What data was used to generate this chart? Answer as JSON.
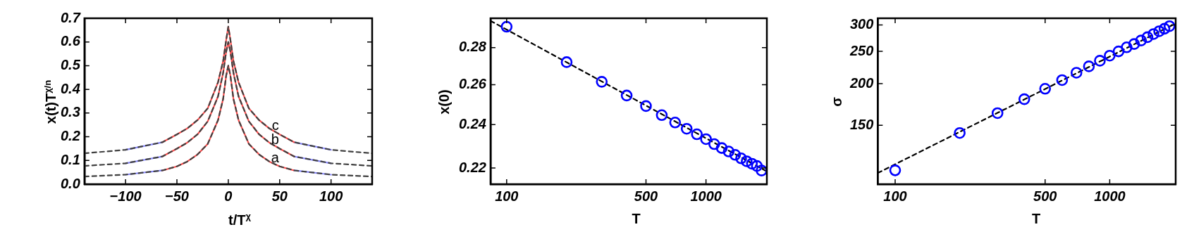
{
  "chart_data": [
    {
      "type": "line",
      "xlabel": "t/T$^{χ}$",
      "ylabel": "x(t)T$^{χ/n}$",
      "xlim": [
        -140,
        140
      ],
      "xticks": [
        {
          "value": -100,
          "label": "−100"
        },
        {
          "value": -50,
          "label": "−50"
        },
        0,
        50,
        100
      ],
      "ylim": [
        0,
        0.7
      ],
      "yticks": [
        {
          "value": 0,
          "label": "0.0"
        },
        0.1,
        0.2,
        0.3,
        0.4,
        0.5,
        0.6,
        0.7
      ],
      "series": [
        {
          "name": "a",
          "color": "#404040",
          "line_style": "dashed",
          "x": [
            -140,
            -100,
            -64,
            -50,
            -40,
            -30,
            -20,
            -10,
            -5,
            -2,
            0,
            2,
            5,
            10,
            20,
            30,
            40,
            50,
            64,
            100,
            140
          ],
          "values": [
            0.032,
            0.04,
            0.058,
            0.075,
            0.095,
            0.125,
            0.17,
            0.27,
            0.36,
            0.46,
            0.5,
            0.46,
            0.36,
            0.27,
            0.17,
            0.125,
            0.095,
            0.075,
            0.058,
            0.04,
            0.032
          ]
        },
        {
          "name": "b",
          "color": "#404040",
          "line_style": "dashed",
          "x": [
            -140,
            -100,
            -64,
            -50,
            -40,
            -30,
            -20,
            -10,
            -5,
            -2,
            0,
            2,
            5,
            10,
            20,
            30,
            40,
            50,
            64,
            100,
            140
          ],
          "values": [
            0.077,
            0.088,
            0.117,
            0.15,
            0.175,
            0.21,
            0.265,
            0.37,
            0.47,
            0.56,
            0.6,
            0.56,
            0.47,
            0.37,
            0.265,
            0.21,
            0.175,
            0.15,
            0.117,
            0.088,
            0.077
          ]
        },
        {
          "name": "c",
          "color": "#404040",
          "line_style": "dashed",
          "x": [
            -140,
            -100,
            -64,
            -50,
            -40,
            -30,
            -20,
            -10,
            -5,
            -2,
            0,
            2,
            5,
            10,
            20,
            30,
            40,
            50,
            64,
            100,
            140
          ],
          "values": [
            0.13,
            0.145,
            0.177,
            0.21,
            0.235,
            0.27,
            0.32,
            0.43,
            0.52,
            0.61,
            0.665,
            0.61,
            0.52,
            0.43,
            0.32,
            0.27,
            0.235,
            0.21,
            0.177,
            0.145,
            0.13
          ]
        },
        {
          "color": "#ff4d4d",
          "line_style": "solid",
          "x": [
            -64,
            -50,
            -40,
            -30,
            -20,
            -10,
            -5,
            -2,
            0,
            2,
            5,
            10,
            20,
            30,
            40,
            50,
            64
          ],
          "values": [
            0.058,
            0.075,
            0.095,
            0.125,
            0.17,
            0.27,
            0.36,
            0.46,
            0.5,
            0.46,
            0.36,
            0.27,
            0.17,
            0.125,
            0.095,
            0.075,
            0.058
          ]
        },
        {
          "color": "#ff4d4d",
          "line_style": "solid",
          "x": [
            -64,
            -50,
            -40,
            -30,
            -20,
            -10,
            -5,
            -2,
            0,
            2,
            5,
            10,
            20,
            30,
            40,
            50,
            64
          ],
          "values": [
            0.117,
            0.15,
            0.175,
            0.21,
            0.265,
            0.37,
            0.47,
            0.56,
            0.6,
            0.56,
            0.47,
            0.37,
            0.265,
            0.21,
            0.175,
            0.15,
            0.117
          ]
        },
        {
          "color": "#ff4d4d",
          "line_style": "solid",
          "x": [
            -64,
            -50,
            -40,
            -30,
            -20,
            -10,
            -5,
            -2,
            0,
            2,
            5,
            10,
            20,
            30,
            40,
            50,
            64
          ],
          "values": [
            0.177,
            0.21,
            0.235,
            0.27,
            0.32,
            0.43,
            0.52,
            0.61,
            0.665,
            0.61,
            0.52,
            0.43,
            0.32,
            0.27,
            0.235,
            0.21,
            0.177
          ]
        },
        {
          "color": "#8c8cff",
          "line_style": "solid",
          "x": [
            -100,
            -64,
            0,
            64,
            100
          ],
          "values": [
            0.04,
            0.058,
            null,
            0.058,
            0.04
          ]
        },
        {
          "color": "#8c8cff",
          "line_style": "solid",
          "x": [
            -100,
            -64,
            0,
            64,
            100
          ],
          "values": [
            0.088,
            0.117,
            null,
            0.117,
            0.088
          ]
        },
        {
          "color": "#8c8cff",
          "line_style": "solid",
          "x": [
            -100,
            -64,
            0,
            64,
            100
          ],
          "values": [
            0.145,
            0.177,
            null,
            0.177,
            0.145
          ]
        }
      ],
      "legend": false
    },
    {
      "type": "scatter",
      "xlabel": "T",
      "ylabel": "x(0)",
      "log": "xy",
      "marker": "circle",
      "xlim": [
        83,
        2020
      ],
      "xticks": [
        100,
        500,
        1000
      ],
      "ylim": [
        0.213,
        0.297
      ],
      "yticks": [
        0.22,
        0.24,
        0.26,
        0.28
      ],
      "series": [
        {
          "color": "#0000ff",
          "x": [
            100,
            200,
            300,
            400,
            500,
            600,
            700,
            800,
            900,
            1000,
            1100,
            1200,
            1300,
            1400,
            1500,
            1600,
            1700,
            1800,
            1900
          ],
          "values": [
            0.292,
            0.272,
            0.2615,
            0.2544,
            0.2491,
            0.2446,
            0.241,
            0.238,
            0.2354,
            0.2331,
            0.2308,
            0.229,
            0.2274,
            0.2259,
            0.2243,
            0.223,
            0.2219,
            0.2209,
            0.2189
          ]
        },
        {
          "color": "#000000",
          "type": "line",
          "marker": "none",
          "line_style": "dashed",
          "x": [
            83,
            2020
          ],
          "values": [
            0.2955,
            0.2185
          ]
        }
      ]
    },
    {
      "type": "scatter",
      "xlabel": "T",
      "ylabel": "σ",
      "log": "xy",
      "marker": "circle",
      "xlim": [
        83,
        2030
      ],
      "xticks": [
        100,
        500,
        1000
      ],
      "ylim": [
        100,
        314
      ],
      "yticks": [
        150,
        200,
        250,
        300
      ],
      "series": [
        {
          "color": "#0000ff",
          "x": [
            100,
            200,
            300,
            400,
            500,
            600,
            700,
            800,
            900,
            1000,
            1100,
            1200,
            1300,
            1400,
            1500,
            1600,
            1700,
            1800,
            1900
          ],
          "values": [
            110,
            142.3,
            163.2,
            179.7,
            193.1,
            205,
            215.7,
            225.4,
            234.3,
            242.6,
            249.9,
            257,
            262.9,
            269.4,
            275.6,
            281.6,
            287.1,
            292.2,
            297.4
          ]
        },
        {
          "color": "#000000",
          "type": "line",
          "marker": "none",
          "line_style": "dashed",
          "x": [
            83,
            2030
          ],
          "values": [
            108,
            303
          ]
        }
      ]
    }
  ]
}
